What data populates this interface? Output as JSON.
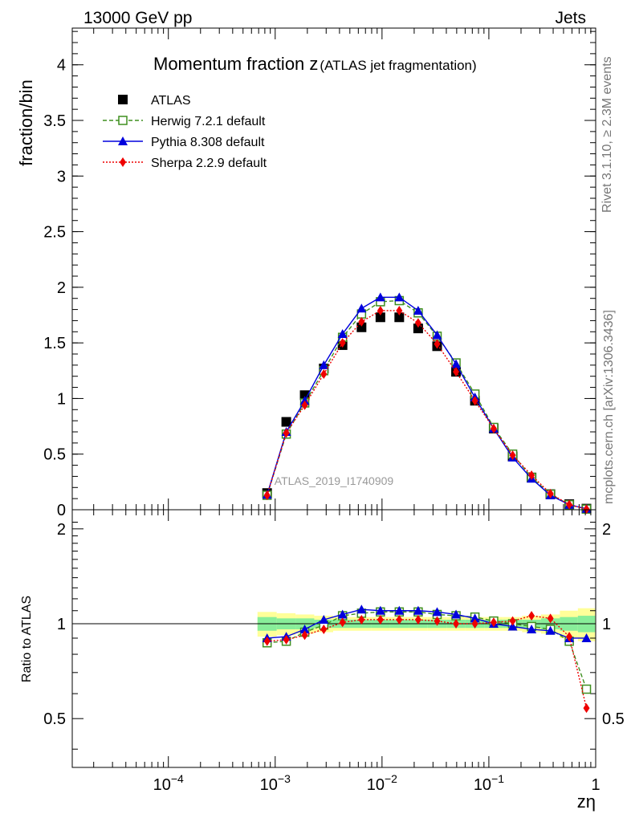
{
  "header": {
    "left": "13000 GeV pp",
    "right": "Jets"
  },
  "side_text": {
    "rivet": "Rivet 3.1.10, ≥ 2.3M events",
    "mcplots": "mcplots.cern.ch [arXiv:1306.3436]"
  },
  "watermark": "ATLAS_2019_I1740909",
  "chart_data": [
    {
      "type": "line",
      "title": "Momentum fraction z",
      "subtitle": "(ATLAS jet fragmentation)",
      "xlabel": "zη",
      "ylabel": "fraction/bin",
      "x_scale": "log",
      "xlim": [
        1.26e-05,
        1.0
      ],
      "ylim": [
        0,
        4.33
      ],
      "x_ticks": [
        {
          "value": 0.0001,
          "label": "10−4"
        },
        {
          "value": 0.001,
          "label": "10−3"
        },
        {
          "value": 0.01,
          "label": "10−2"
        },
        {
          "value": 0.1,
          "label": "10−1"
        },
        {
          "value": 1,
          "label": "1"
        }
      ],
      "y_ticks": [
        {
          "value": 0,
          "label": "0"
        },
        {
          "value": 0.5,
          "label": "0.5"
        },
        {
          "value": 1,
          "label": "1"
        },
        {
          "value": 1.5,
          "label": "1.5"
        },
        {
          "value": 2,
          "label": "2"
        },
        {
          "value": 2.5,
          "label": "2.5"
        },
        {
          "value": 3,
          "label": "3"
        },
        {
          "value": 3.5,
          "label": "3.5"
        },
        {
          "value": 4,
          "label": "4"
        }
      ],
      "legend_position": "top-left",
      "x": [
        0.00084,
        0.00127,
        0.00189,
        0.00285,
        0.00427,
        0.00643,
        0.00966,
        0.0145,
        0.0218,
        0.0328,
        0.0493,
        0.0741,
        0.111,
        0.167,
        0.251,
        0.377,
        0.566,
        0.82
      ],
      "series": [
        {
          "name": "ATLAS",
          "color": "#000000",
          "marker": "square-filled",
          "line": "none",
          "values": [
            0.15,
            0.79,
            1.03,
            1.27,
            1.48,
            1.64,
            1.73,
            1.73,
            1.63,
            1.47,
            1.24,
            0.98,
            0.73,
            0.48,
            0.29,
            0.14,
            0.05,
            0.01
          ]
        },
        {
          "name": "Herwig 7.2.1 default",
          "color": "#3f8f1f",
          "marker": "square-open",
          "line": "dashed",
          "values": [
            0.13,
            0.68,
            0.96,
            1.25,
            1.55,
            1.76,
            1.87,
            1.88,
            1.77,
            1.56,
            1.32,
            1.04,
            0.74,
            0.5,
            0.29,
            0.14,
            0.045,
            0.006
          ]
        },
        {
          "name": "Pythia 8.308 default",
          "color": "#0000dd",
          "marker": "triangle-filled",
          "line": "solid",
          "values": [
            0.135,
            0.7,
            0.98,
            1.3,
            1.58,
            1.81,
            1.91,
            1.91,
            1.79,
            1.57,
            1.31,
            1.01,
            0.73,
            0.47,
            0.28,
            0.13,
            0.045,
            0.009
          ]
        },
        {
          "name": "Sherpa 2.2.9 default",
          "color": "#ee0000",
          "marker": "diamond-filled",
          "line": "dotted",
          "values": [
            0.13,
            0.69,
            0.94,
            1.22,
            1.5,
            1.69,
            1.79,
            1.79,
            1.68,
            1.49,
            1.24,
            0.98,
            0.73,
            0.49,
            0.31,
            0.145,
            0.046,
            0.005
          ]
        }
      ]
    },
    {
      "type": "line",
      "ylabel": "Ratio to ATLAS",
      "xlabel": "zη",
      "x_scale": "log",
      "xlim": [
        1.26e-05,
        1.0
      ],
      "ylim": [
        0.35,
        2.3
      ],
      "y_ticks": [
        {
          "value": 0.5,
          "label": "0.5"
        },
        {
          "value": 1,
          "label": "1"
        },
        {
          "value": 2,
          "label": "2"
        }
      ],
      "reference_line": 1,
      "band_outer": {
        "color": "#ffff99",
        "values_lo": [
          0.91,
          0.92,
          0.93,
          0.94,
          0.95,
          0.95,
          0.95,
          0.95,
          0.95,
          0.95,
          0.95,
          0.95,
          0.95,
          0.95,
          0.94,
          0.93,
          0.9,
          0.88
        ],
        "values_hi": [
          1.09,
          1.08,
          1.07,
          1.06,
          1.05,
          1.05,
          1.05,
          1.05,
          1.05,
          1.05,
          1.05,
          1.05,
          1.05,
          1.05,
          1.06,
          1.07,
          1.1,
          1.12
        ]
      },
      "band_inner": {
        "color": "#88ee99",
        "values_lo": [
          0.95,
          0.96,
          0.96,
          0.97,
          0.97,
          0.97,
          0.97,
          0.97,
          0.97,
          0.97,
          0.97,
          0.97,
          0.97,
          0.97,
          0.97,
          0.96,
          0.95,
          0.94
        ],
        "values_hi": [
          1.05,
          1.04,
          1.04,
          1.03,
          1.03,
          1.03,
          1.03,
          1.03,
          1.03,
          1.03,
          1.03,
          1.03,
          1.03,
          1.03,
          1.03,
          1.04,
          1.05,
          1.06
        ]
      },
      "x": [
        0.00084,
        0.00127,
        0.00189,
        0.00285,
        0.00427,
        0.00643,
        0.00966,
        0.0145,
        0.0218,
        0.0328,
        0.0493,
        0.0741,
        0.111,
        0.167,
        0.251,
        0.377,
        0.566,
        0.82
      ],
      "series": [
        {
          "name": "Herwig 7.2.1 default",
          "color": "#3f8f1f",
          "marker": "square-open",
          "line": "dashed",
          "values": [
            0.87,
            0.88,
            0.94,
            0.99,
            1.06,
            1.08,
            1.09,
            1.09,
            1.09,
            1.07,
            1.06,
            1.05,
            1.02,
            1.0,
            0.98,
            0.96,
            0.88,
            0.62
          ]
        },
        {
          "name": "Pythia 8.308 default",
          "color": "#0000dd",
          "marker": "triangle-filled",
          "line": "solid",
          "values": [
            0.9,
            0.91,
            0.96,
            1.03,
            1.07,
            1.11,
            1.1,
            1.1,
            1.1,
            1.09,
            1.07,
            1.04,
            1.0,
            0.98,
            0.96,
            0.95,
            0.9,
            0.9
          ]
        },
        {
          "name": "Sherpa 2.2.9 default",
          "color": "#ee0000",
          "marker": "diamond-filled",
          "line": "dotted",
          "values": [
            0.88,
            0.89,
            0.92,
            0.96,
            1.01,
            1.03,
            1.03,
            1.03,
            1.03,
            1.02,
            1.0,
            1.0,
            1.01,
            1.02,
            1.06,
            1.04,
            0.91,
            0.54
          ]
        }
      ]
    }
  ]
}
